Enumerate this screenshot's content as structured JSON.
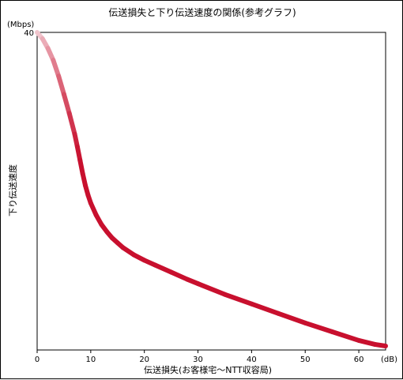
{
  "chart_data": {
    "type": "line",
    "title": "伝送損失と下り伝送速度の関係(参考グラフ)",
    "xlabel": "伝送損失(お客様宅〜NTT収容局)",
    "ylabel": "下り伝送速度",
    "x_unit": "(dB)",
    "y_unit": "(Mbps)",
    "xlim": [
      0,
      65
    ],
    "ylim": [
      0,
      40
    ],
    "x_ticks": [
      0,
      10,
      20,
      30,
      40,
      50,
      60
    ],
    "y_ticks": [
      40
    ],
    "grid": false,
    "series": [
      {
        "color": "#c8102e",
        "fade_start_color": "#f3d0d6",
        "x": [
          0,
          1,
          2,
          3,
          4,
          5,
          6,
          7,
          7.5,
          8,
          8.5,
          9,
          9.5,
          10,
          11,
          12,
          13,
          14,
          15,
          16,
          18,
          20,
          22,
          25,
          28,
          30,
          35,
          40,
          45,
          50,
          55,
          60,
          63,
          65
        ],
        "y": [
          40,
          39.2,
          38.0,
          36.5,
          34.5,
          32.2,
          29.8,
          27.2,
          25.6,
          23.9,
          22.2,
          20.7,
          19.5,
          18.5,
          17.0,
          15.8,
          14.9,
          14.1,
          13.5,
          12.9,
          12.0,
          11.3,
          10.7,
          9.8,
          8.9,
          8.35,
          7.0,
          5.8,
          4.6,
          3.4,
          2.3,
          1.2,
          0.7,
          0.5
        ]
      }
    ]
  }
}
